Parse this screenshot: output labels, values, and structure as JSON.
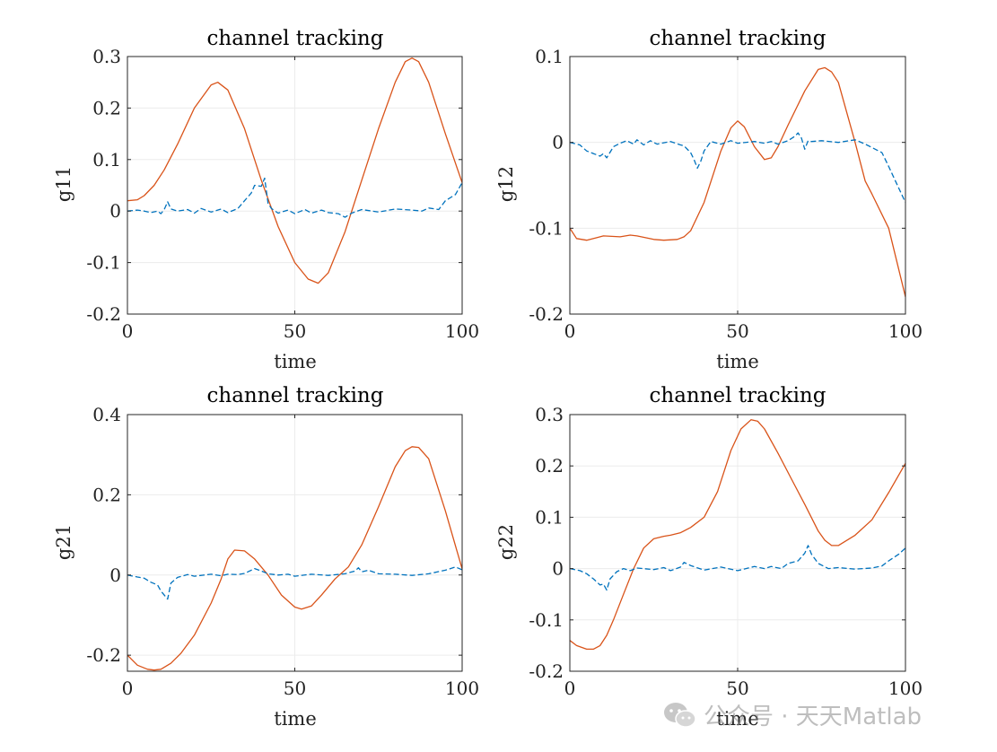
{
  "chart_data": [
    {
      "type": "line",
      "title": "channel tracking",
      "xlabel": "time",
      "ylabel": "g11",
      "xlim": [
        0,
        100
      ],
      "ylim": [
        -0.2,
        0.3
      ],
      "xticks": [
        0,
        50,
        100
      ],
      "xtick_labels": [
        "0",
        "50",
        "100"
      ],
      "yticks": [
        -0.2,
        -0.1,
        0,
        0.1,
        0.2,
        0.3
      ],
      "ytick_labels": [
        "-0.2",
        "-0.1",
        "0",
        "0.1",
        "0.2",
        "0.3"
      ],
      "grid": true,
      "series": [
        {
          "style": "solid",
          "color": "#D95319",
          "x": [
            0,
            3,
            5,
            8,
            11,
            15,
            20,
            25,
            27,
            30,
            35,
            40,
            45,
            50,
            54,
            57,
            60,
            65,
            70,
            75,
            80,
            83,
            85,
            87,
            90,
            95,
            100
          ],
          "y": [
            0.02,
            0.022,
            0.03,
            0.05,
            0.08,
            0.13,
            0.2,
            0.245,
            0.25,
            0.235,
            0.16,
            0.06,
            -0.03,
            -0.1,
            -0.132,
            -0.14,
            -0.12,
            -0.04,
            0.06,
            0.16,
            0.25,
            0.29,
            0.297,
            0.29,
            0.25,
            0.15,
            0.055
          ]
        },
        {
          "style": "dashed",
          "color": "#0072BD",
          "x": [
            0,
            3,
            5,
            7,
            9,
            10,
            11,
            12,
            13,
            15,
            18,
            20,
            22,
            25,
            28,
            30,
            33,
            35,
            37,
            38,
            40,
            41,
            42,
            43,
            45,
            48,
            50,
            53,
            55,
            58,
            60,
            63,
            65,
            67,
            70,
            75,
            80,
            85,
            88,
            90,
            93,
            95,
            98,
            100
          ],
          "y": [
            0,
            0.002,
            0,
            -0.003,
            0,
            -0.005,
            0.003,
            0.018,
            0.004,
            0,
            0.003,
            -0.004,
            0.005,
            -0.002,
            0.004,
            -0.003,
            0.005,
            0.02,
            0.035,
            0.05,
            0.048,
            0.064,
            0.015,
            0.005,
            -0.004,
            0.002,
            -0.005,
            0.003,
            -0.004,
            0.002,
            -0.003,
            -0.005,
            -0.012,
            -0.004,
            0.003,
            -0.002,
            0.004,
            0.002,
            0,
            0.006,
            0.003,
            0.02,
            0.032,
            0.055
          ]
        }
      ]
    },
    {
      "type": "line",
      "title": "channel tracking",
      "xlabel": "time",
      "ylabel": "g12",
      "xlim": [
        0,
        100
      ],
      "ylim": [
        -0.2,
        0.1
      ],
      "xticks": [
        0,
        50,
        100
      ],
      "xtick_labels": [
        "0",
        "50",
        "100"
      ],
      "yticks": [
        -0.2,
        -0.1,
        0,
        0.1
      ],
      "ytick_labels": [
        "-0.2",
        "-0.1",
        "0",
        "0.1"
      ],
      "grid": true,
      "series": [
        {
          "style": "solid",
          "color": "#D95319",
          "x": [
            0,
            2,
            5,
            8,
            10,
            15,
            18,
            20,
            25,
            28,
            32,
            34,
            36,
            40,
            45,
            48,
            50,
            52,
            55,
            58,
            60,
            62,
            65,
            70,
            74,
            76,
            78,
            80,
            85,
            88,
            90,
            95,
            100
          ],
          "y": [
            -0.1,
            -0.112,
            -0.114,
            -0.111,
            -0.109,
            -0.11,
            -0.108,
            -0.109,
            -0.113,
            -0.114,
            -0.113,
            -0.11,
            -0.103,
            -0.07,
            -0.01,
            0.017,
            0.025,
            0.018,
            -0.005,
            -0.02,
            -0.018,
            -0.005,
            0.02,
            0.06,
            0.085,
            0.087,
            0.082,
            0.07,
            0.0,
            -0.045,
            -0.06,
            -0.1,
            -0.18
          ]
        },
        {
          "style": "dashed",
          "color": "#0072BD",
          "x": [
            0,
            3,
            5,
            7,
            9,
            10,
            11,
            13,
            15,
            17,
            19,
            20,
            22,
            24,
            26,
            30,
            33,
            34,
            36,
            37,
            38,
            39,
            40,
            42,
            45,
            48,
            50,
            55,
            58,
            60,
            62,
            65,
            67,
            68,
            69,
            70,
            71,
            72,
            75,
            80,
            85,
            88,
            90,
            93,
            95,
            97,
            100
          ],
          "y": [
            0,
            -0.003,
            -0.01,
            -0.013,
            -0.016,
            -0.013,
            -0.018,
            -0.005,
            -0.001,
            0.002,
            -0.002,
            0.003,
            -0.003,
            0.002,
            -0.002,
            0.001,
            -0.003,
            -0.004,
            -0.012,
            -0.02,
            -0.03,
            -0.022,
            -0.01,
            0.001,
            -0.002,
            0.002,
            -0.001,
            0.001,
            -0.001,
            0.001,
            -0.002,
            0.002,
            0.007,
            0.011,
            0.005,
            -0.008,
            0.002,
            0.001,
            0.002,
            0.0,
            0.003,
            -0.002,
            -0.006,
            -0.012,
            -0.028,
            -0.045,
            -0.07
          ]
        }
      ]
    },
    {
      "type": "line",
      "title": "channel tracking",
      "xlabel": "time",
      "ylabel": "g21",
      "xlim": [
        0,
        100
      ],
      "ylim": [
        -0.24,
        0.4
      ],
      "xticks": [
        0,
        50,
        100
      ],
      "xtick_labels": [
        "0",
        "50",
        "100"
      ],
      "yticks": [
        -0.2,
        0,
        0.2,
        0.4
      ],
      "ytick_labels": [
        "-0.2",
        "0",
        "0.2",
        "0.4"
      ],
      "grid": true,
      "series": [
        {
          "style": "solid",
          "color": "#D95319",
          "x": [
            0,
            3,
            6,
            8,
            10,
            13,
            16,
            20,
            25,
            28,
            30,
            32,
            35,
            38,
            42,
            46,
            50,
            52,
            55,
            58,
            62,
            66,
            70,
            75,
            80,
            83,
            85,
            87,
            90,
            95,
            100
          ],
          "y": [
            -0.2,
            -0.225,
            -0.235,
            -0.237,
            -0.235,
            -0.22,
            -0.195,
            -0.15,
            -0.07,
            -0.01,
            0.04,
            0.062,
            0.06,
            0.04,
            0.0,
            -0.05,
            -0.08,
            -0.085,
            -0.077,
            -0.05,
            -0.01,
            0.02,
            0.075,
            0.17,
            0.27,
            0.31,
            0.32,
            0.318,
            0.29,
            0.16,
            0.015
          ]
        },
        {
          "style": "dashed",
          "color": "#0072BD",
          "x": [
            0,
            3,
            5,
            7,
            9,
            10,
            11,
            12,
            13,
            15,
            18,
            20,
            25,
            28,
            30,
            33,
            35,
            37,
            38,
            40,
            42,
            45,
            48,
            50,
            55,
            60,
            65,
            68,
            69,
            70,
            72,
            75,
            80,
            85,
            90,
            95,
            98,
            100
          ],
          "y": [
            0,
            -0.005,
            -0.008,
            -0.018,
            -0.025,
            -0.04,
            -0.05,
            -0.06,
            -0.02,
            -0.006,
            0.001,
            -0.003,
            0.002,
            -0.002,
            0.002,
            0.001,
            0.004,
            0.012,
            0.016,
            0.01,
            0.003,
            0.0,
            0.002,
            -0.003,
            0.002,
            -0.001,
            0.003,
            0.01,
            0.018,
            0.008,
            0.012,
            0.003,
            0.002,
            -0.001,
            0.003,
            0.012,
            0.02,
            0.013
          ]
        }
      ]
    },
    {
      "type": "line",
      "title": "channel tracking",
      "xlabel": "time",
      "ylabel": "g22",
      "xlim": [
        0,
        100
      ],
      "ylim": [
        -0.2,
        0.3
      ],
      "xticks": [
        0,
        50,
        100
      ],
      "xtick_labels": [
        "0",
        "50",
        "100"
      ],
      "yticks": [
        -0.2,
        -0.1,
        0,
        0.1,
        0.2,
        0.3
      ],
      "ytick_labels": [
        "-0.2",
        "-0.1",
        "0",
        "0.1",
        "0.2",
        "0.3"
      ],
      "grid": true,
      "series": [
        {
          "style": "solid",
          "color": "#D95319",
          "x": [
            0,
            2,
            5,
            7,
            9,
            11,
            13,
            16,
            19,
            22,
            25,
            28,
            30,
            33,
            36,
            40,
            44,
            48,
            51,
            54,
            56,
            58,
            62,
            66,
            70,
            74,
            76,
            78,
            80,
            85,
            90,
            95,
            100
          ],
          "y": [
            -0.14,
            -0.15,
            -0.157,
            -0.157,
            -0.15,
            -0.13,
            -0.1,
            -0.05,
            0.0,
            0.04,
            0.058,
            0.063,
            0.065,
            0.07,
            0.08,
            0.1,
            0.15,
            0.23,
            0.272,
            0.29,
            0.287,
            0.272,
            0.225,
            0.175,
            0.125,
            0.073,
            0.055,
            0.045,
            0.045,
            0.065,
            0.095,
            0.148,
            0.205
          ]
        },
        {
          "style": "dashed",
          "color": "#0072BD",
          "x": [
            0,
            3,
            5,
            7,
            9,
            10,
            11,
            12,
            14,
            16,
            18,
            20,
            25,
            28,
            30,
            33,
            34,
            36,
            40,
            45,
            50,
            55,
            58,
            60,
            63,
            65,
            68,
            70,
            71,
            72,
            74,
            77,
            80,
            85,
            90,
            93,
            95,
            98,
            100
          ],
          "y": [
            0,
            -0.004,
            -0.01,
            -0.02,
            -0.032,
            -0.03,
            -0.042,
            -0.02,
            -0.006,
            0.0,
            -0.004,
            0.001,
            -0.002,
            0.002,
            -0.004,
            0.003,
            0.012,
            0.006,
            -0.003,
            0.003,
            -0.004,
            0.004,
            0.0,
            0.004,
            0.0,
            0.01,
            0.015,
            0.03,
            0.045,
            0.028,
            0.01,
            0.0,
            0.002,
            -0.001,
            0.001,
            0.005,
            0.015,
            0.028,
            0.04
          ]
        }
      ]
    }
  ],
  "watermark": {
    "text": "公众号 · 天天Matlab",
    "icon": "wechat-icon"
  }
}
